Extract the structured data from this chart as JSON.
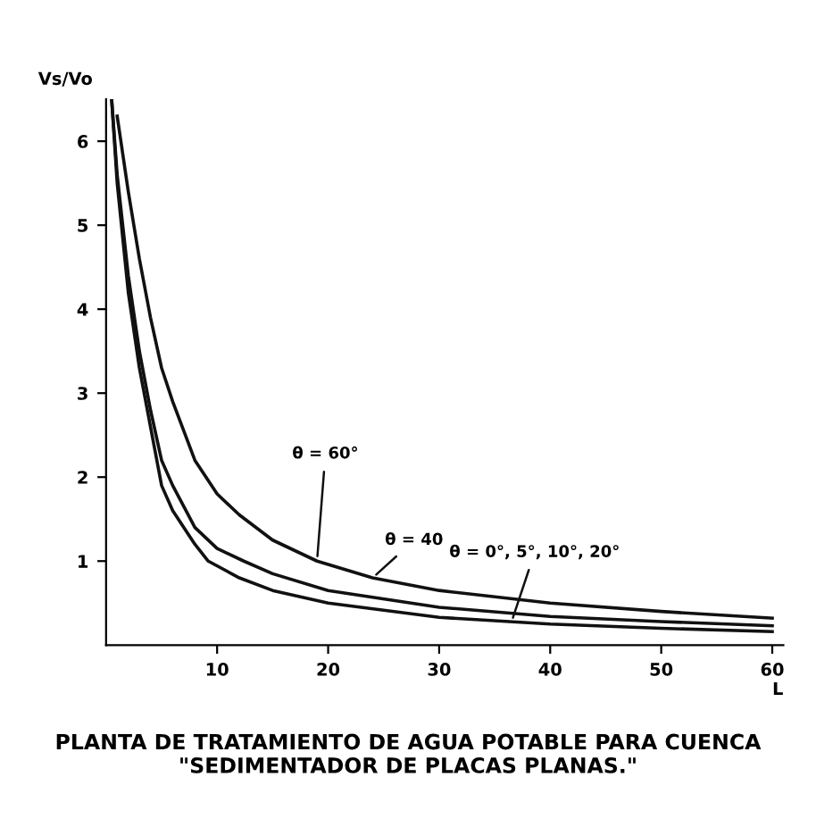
{
  "chart_data": {
    "type": "line",
    "title": "PLANTA DE TRATAMIENTO DE AGUA POTABLE PARA CUENCA \"SEDIMENTADOR DE PLACAS PLANAS.\"",
    "xlabel": "L",
    "ylabel": "Vs/Vo",
    "series": [
      {
        "color": "#111111",
        "x": [
          1,
          2,
          3,
          4,
          5,
          6,
          8,
          10,
          12,
          15,
          19,
          24,
          30,
          40,
          50,
          60
        ],
        "values": [
          6.3,
          5.4,
          4.6,
          3.9,
          3.3,
          2.9,
          2.2,
          1.8,
          1.55,
          1.25,
          1.0,
          0.8,
          0.65,
          0.5,
          0.4,
          0.32
        ]
      },
      {
        "color": "#111111",
        "x": [
          0.5,
          1,
          2,
          3,
          4,
          5,
          6,
          8,
          10,
          12.4,
          15,
          20,
          30,
          40,
          50,
          60
        ],
        "values": [
          6.5,
          5.6,
          4.4,
          3.5,
          2.8,
          2.2,
          1.9,
          1.4,
          1.15,
          1.0,
          0.85,
          0.65,
          0.45,
          0.34,
          0.28,
          0.23
        ]
      },
      {
        "color": "#111111",
        "x": [
          0.5,
          1,
          2,
          3,
          4,
          5,
          6,
          8,
          9.2,
          12,
          15,
          20,
          30,
          40,
          50,
          60
        ],
        "values": [
          6.5,
          5.5,
          4.2,
          3.3,
          2.6,
          1.9,
          1.6,
          1.2,
          1.0,
          0.8,
          0.65,
          0.5,
          0.33,
          0.25,
          0.2,
          0.16
        ]
      }
    ],
    "annotations": [
      {
        "text": "θ = 60°",
        "x": 19,
        "y": 1.0
      },
      {
        "text": "θ = 40",
        "x": 24,
        "y": 0.8
      },
      {
        "text": "θ = 0°, 5°, 10°, 20°",
        "x": 36.5,
        "y": 0.27
      }
    ],
    "xlim": [
      0,
      61
    ],
    "ylim": [
      0,
      6.5
    ],
    "xticks": [
      10,
      20,
      30,
      40,
      50,
      60
    ],
    "yticks": [
      1,
      2,
      3,
      4,
      5,
      6
    ],
    "grid": false,
    "legend": false,
    "marker": "none",
    "line_style": "solid"
  }
}
